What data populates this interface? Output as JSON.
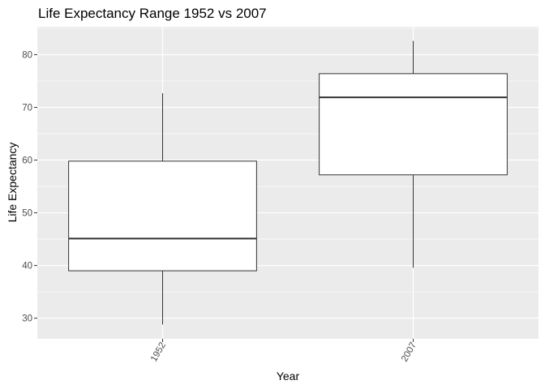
{
  "chart_data": {
    "type": "boxplot",
    "title": "Life Expectancy Range 1952 vs 2007",
    "xlabel": "Year",
    "ylabel": "Life Expectancy",
    "categories": [
      "1952",
      "2007"
    ],
    "boxes": [
      {
        "category": "1952",
        "whisker_low": 28.8,
        "q1": 39.0,
        "median": 45.1,
        "q3": 59.8,
        "whisker_high": 72.7
      },
      {
        "category": "2007",
        "whisker_low": 39.6,
        "q1": 57.2,
        "median": 71.9,
        "q3": 76.4,
        "whisker_high": 82.6
      }
    ],
    "yticks": [
      30,
      40,
      50,
      60,
      70,
      80
    ],
    "ylim": [
      26.1,
      85.3
    ],
    "grid": true,
    "colors": {
      "panel": "#ebebeb",
      "grid": "#ffffff",
      "box_fill": "#ffffff",
      "box_stroke": "#333333",
      "text": "#000000",
      "tick_text": "#4d4d4d"
    }
  }
}
